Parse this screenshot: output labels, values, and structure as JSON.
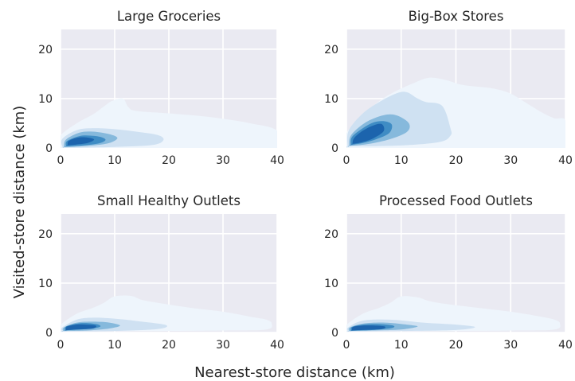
{
  "figure": {
    "xlabel": "Nearest-store distance (km)",
    "ylabel": "Visited-store distance (km)",
    "level_colors": [
      "#eef5fc",
      "#cfe1f2",
      "#86b9dc",
      "#3f8cc4",
      "#1c64ad"
    ]
  },
  "chart_data": [
    {
      "type": "contour",
      "title": "Large Groceries",
      "xlim": [
        0,
        40
      ],
      "ylim": [
        0,
        24
      ],
      "xticks": [
        "0",
        "10",
        "20",
        "30",
        "40"
      ],
      "yticks": [
        "0",
        "10",
        "20"
      ],
      "grid": true,
      "levels": [
        {
          "level": 1,
          "boundary": [
            [
              0,
              0.2
            ],
            [
              0,
              2.5
            ],
            [
              3,
              5
            ],
            [
              6,
              6.8
            ],
            [
              8,
              8.4
            ],
            [
              9.5,
              9.5
            ],
            [
              11.5,
              10
            ],
            [
              12.5,
              8.3
            ],
            [
              14,
              7.5
            ],
            [
              20,
              7
            ],
            [
              28,
              6.2
            ],
            [
              35,
              5
            ],
            [
              40,
              3.5
            ],
            [
              40,
              0
            ],
            [
              0,
              0
            ]
          ]
        },
        {
          "level": 2,
          "boundary": [
            [
              0.4,
              0
            ],
            [
              0.3,
              1.8
            ],
            [
              3,
              3.6
            ],
            [
              6,
              4
            ],
            [
              10,
              3.8
            ],
            [
              14,
              3.3
            ],
            [
              18,
              2.6
            ],
            [
              19,
              1.6
            ],
            [
              17,
              0.6
            ],
            [
              10,
              0.2
            ],
            [
              0.4,
              0
            ]
          ]
        },
        {
          "level": 3,
          "boundary": [
            [
              0.6,
              0.2
            ],
            [
              1,
              1.7
            ],
            [
              3.5,
              3.1
            ],
            [
              6,
              3.3
            ],
            [
              9,
              2.8
            ],
            [
              10.5,
              2
            ],
            [
              9,
              1
            ],
            [
              6,
              0.5
            ],
            [
              2,
              0.2
            ],
            [
              0.6,
              0.2
            ]
          ]
        },
        {
          "level": 4,
          "boundary": [
            [
              1,
              0.3
            ],
            [
              1.2,
              1.4
            ],
            [
              3.5,
              2.4
            ],
            [
              5.5,
              2.5
            ],
            [
              7.5,
              2.2
            ],
            [
              8.3,
              1.6
            ],
            [
              7,
              0.9
            ],
            [
              4,
              0.5
            ],
            [
              1,
              0.3
            ]
          ]
        },
        {
          "level": 5,
          "boundary": [
            [
              1.3,
              0.5
            ],
            [
              1.5,
              1.4
            ],
            [
              3.2,
              2.1
            ],
            [
              5,
              2.1
            ],
            [
              6.2,
              1.7
            ],
            [
              5,
              1
            ],
            [
              3,
              0.7
            ],
            [
              1.3,
              0.5
            ]
          ]
        }
      ]
    },
    {
      "type": "contour",
      "title": "Big-Box Stores",
      "xlim": [
        0,
        40
      ],
      "ylim": [
        0,
        24
      ],
      "xticks": [
        "0",
        "10",
        "20",
        "30",
        "40"
      ],
      "yticks": [
        "0",
        "10",
        "20"
      ],
      "grid": true,
      "levels": [
        {
          "level": 1,
          "boundary": [
            [
              0,
              0.5
            ],
            [
              0,
              3
            ],
            [
              3,
              6.5
            ],
            [
              6,
              9.5
            ],
            [
              9,
              11.5
            ],
            [
              12,
              13
            ],
            [
              15,
              14.2
            ],
            [
              18,
              13.8
            ],
            [
              21,
              12.8
            ],
            [
              24,
              12.4
            ],
            [
              27,
              12
            ],
            [
              30,
              11
            ],
            [
              33,
              9
            ],
            [
              36,
              7
            ],
            [
              38,
              6
            ],
            [
              40,
              5.5
            ],
            [
              40,
              0
            ],
            [
              0,
              0
            ]
          ]
        },
        {
          "level": 2,
          "boundary": [
            [
              0.2,
              0.3
            ],
            [
              0.4,
              3.5
            ],
            [
              3,
              7
            ],
            [
              6,
              9.3
            ],
            [
              9,
              11
            ],
            [
              11,
              11.3
            ],
            [
              13,
              10
            ],
            [
              14.5,
              9.3
            ],
            [
              17.5,
              8.5
            ],
            [
              19,
              4
            ],
            [
              19,
              2.5
            ],
            [
              17,
              1.2
            ],
            [
              10,
              0.5
            ],
            [
              0.2,
              0.3
            ]
          ]
        },
        {
          "level": 3,
          "boundary": [
            [
              0.5,
              0.4
            ],
            [
              0.8,
              2.5
            ],
            [
              3,
              4.8
            ],
            [
              5.5,
              6.2
            ],
            [
              8,
              6.8
            ],
            [
              10,
              6.2
            ],
            [
              11.5,
              4.8
            ],
            [
              11,
              3.2
            ],
            [
              8,
              1.8
            ],
            [
              4,
              0.8
            ],
            [
              0.5,
              0.4
            ]
          ]
        },
        {
          "level": 4,
          "boundary": [
            [
              0.8,
              0.6
            ],
            [
              1,
              2.2
            ],
            [
              3,
              4
            ],
            [
              5,
              5.2
            ],
            [
              7,
              5.4
            ],
            [
              8.3,
              4.7
            ],
            [
              7.8,
              3
            ],
            [
              5.5,
              1.8
            ],
            [
              3,
              1
            ],
            [
              0.8,
              0.6
            ]
          ]
        },
        {
          "level": 5,
          "boundary": [
            [
              1.1,
              0.8
            ],
            [
              1.4,
              2
            ],
            [
              3,
              3.5
            ],
            [
              5,
              4.6
            ],
            [
              6.5,
              4.8
            ],
            [
              6.8,
              3.4
            ],
            [
              5,
              2
            ],
            [
              3,
              1.2
            ],
            [
              1.1,
              0.8
            ]
          ]
        }
      ]
    },
    {
      "type": "contour",
      "title": "Small Healthy Outlets",
      "xlim": [
        0,
        40
      ],
      "ylim": [
        0,
        24
      ],
      "xticks": [
        "0",
        "10",
        "20",
        "30",
        "40"
      ],
      "yticks": [
        "0",
        "10",
        "20"
      ],
      "grid": true,
      "levels": [
        {
          "level": 1,
          "boundary": [
            [
              0,
              0.2
            ],
            [
              0,
              1.5
            ],
            [
              3,
              3.8
            ],
            [
              6,
              5
            ],
            [
              8,
              6
            ],
            [
              10,
              7.3
            ],
            [
              13,
              7.4
            ],
            [
              15,
              6.6
            ],
            [
              18,
              6
            ],
            [
              24,
              5
            ],
            [
              30,
              4.2
            ],
            [
              35,
              3.2
            ],
            [
              38,
              2.6
            ],
            [
              39,
              1.8
            ],
            [
              38,
              0.6
            ],
            [
              30,
              0.4
            ],
            [
              0,
              0.2
            ]
          ]
        },
        {
          "level": 2,
          "boundary": [
            [
              0.3,
              0.2
            ],
            [
              0.3,
              1
            ],
            [
              3,
              2.6
            ],
            [
              6,
              3
            ],
            [
              10,
              2.8
            ],
            [
              15,
              2.2
            ],
            [
              19.5,
              1.5
            ],
            [
              18,
              0.7
            ],
            [
              10,
              0.3
            ],
            [
              0.3,
              0.2
            ]
          ]
        },
        {
          "level": 3,
          "boundary": [
            [
              0.5,
              0.3
            ],
            [
              0.6,
              1
            ],
            [
              3,
              2
            ],
            [
              6,
              2.2
            ],
            [
              9,
              2
            ],
            [
              11,
              1.4
            ],
            [
              9,
              0.8
            ],
            [
              5,
              0.4
            ],
            [
              0.5,
              0.3
            ]
          ]
        },
        {
          "level": 4,
          "boundary": [
            [
              0.8,
              0.4
            ],
            [
              1,
              1.2
            ],
            [
              3,
              1.8
            ],
            [
              5,
              1.9
            ],
            [
              7,
              1.6
            ],
            [
              7.2,
              1.1
            ],
            [
              5,
              0.7
            ],
            [
              2,
              0.5
            ],
            [
              0.8,
              0.4
            ]
          ]
        },
        {
          "level": 5,
          "boundary": [
            [
              1,
              0.45
            ],
            [
              1.2,
              1.2
            ],
            [
              3,
              1.6
            ],
            [
              4.6,
              1.6
            ],
            [
              6.5,
              1.4
            ],
            [
              6,
              0.8
            ],
            [
              3,
              0.6
            ],
            [
              1,
              0.45
            ]
          ]
        }
      ]
    },
    {
      "type": "contour",
      "title": "Processed Food Outlets",
      "xlim": [
        0,
        40
      ],
      "ylim": [
        0,
        24
      ],
      "xticks": [
        "0",
        "10",
        "20",
        "30",
        "40"
      ],
      "yticks": [
        "0",
        "10",
        "20"
      ],
      "grid": true,
      "levels": [
        {
          "level": 1,
          "boundary": [
            [
              0,
              0.2
            ],
            [
              0,
              1.5
            ],
            [
              3,
              3.8
            ],
            [
              6,
              5
            ],
            [
              8,
              6
            ],
            [
              10,
              7.3
            ],
            [
              13,
              7.1
            ],
            [
              15,
              6.4
            ],
            [
              18,
              5.8
            ],
            [
              24,
              5
            ],
            [
              30,
              4.2
            ],
            [
              35,
              3.3
            ],
            [
              38,
              2.6
            ],
            [
              39,
              1.8
            ],
            [
              38,
              0.6
            ],
            [
              30,
              0.4
            ],
            [
              0,
              0.2
            ]
          ]
        },
        {
          "level": 2,
          "boundary": [
            [
              0.3,
              0.2
            ],
            [
              0.3,
              1
            ],
            [
              3,
              2.4
            ],
            [
              8,
              2.6
            ],
            [
              14,
              2
            ],
            [
              20,
              1.6
            ],
            [
              23.5,
              1.1
            ],
            [
              20,
              0.5
            ],
            [
              10,
              0.3
            ],
            [
              0.3,
              0.2
            ]
          ]
        },
        {
          "level": 3,
          "boundary": [
            [
              0.5,
              0.3
            ],
            [
              0.6,
              1
            ],
            [
              3,
              1.8
            ],
            [
              7,
              2
            ],
            [
              11,
              1.6
            ],
            [
              13,
              1.2
            ],
            [
              10,
              0.6
            ],
            [
              5,
              0.4
            ],
            [
              0.5,
              0.3
            ]
          ]
        },
        {
          "level": 4,
          "boundary": [
            [
              0.8,
              0.35
            ],
            [
              1,
              1.1
            ],
            [
              3,
              1.6
            ],
            [
              6,
              1.7
            ],
            [
              8.5,
              1.4
            ],
            [
              8.3,
              0.9
            ],
            [
              5,
              0.5
            ],
            [
              2,
              0.4
            ],
            [
              0.8,
              0.35
            ]
          ]
        },
        {
          "level": 5,
          "boundary": [
            [
              1,
              0.4
            ],
            [
              1.2,
              1.1
            ],
            [
              3,
              1.4
            ],
            [
              5,
              1.4
            ],
            [
              7,
              1.2
            ],
            [
              6.5,
              0.7
            ],
            [
              3,
              0.5
            ],
            [
              1,
              0.4
            ]
          ]
        }
      ]
    }
  ]
}
